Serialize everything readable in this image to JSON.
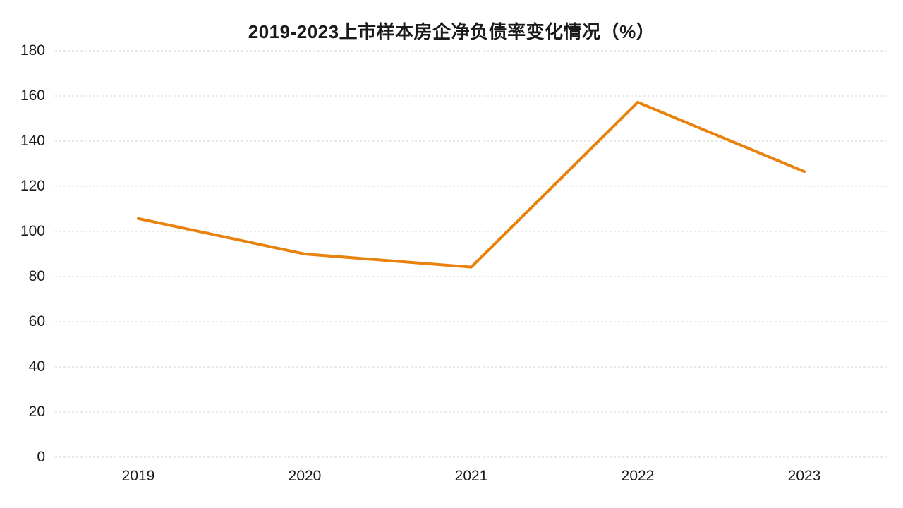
{
  "chart_data": {
    "type": "line",
    "title": "2019-2023上市样本房企净负债率变化情况（%）",
    "categories": [
      "2019",
      "2020",
      "2021",
      "2022",
      "2023"
    ],
    "values": [
      105.7,
      90.0,
      84.2,
      157.2,
      126.5
    ],
    "xlabel": "",
    "ylabel": "",
    "ylim": [
      0,
      180
    ],
    "ytick_step": 20,
    "yticks": [
      "0",
      "20",
      "40",
      "60",
      "80",
      "100",
      "120",
      "140",
      "160",
      "180"
    ],
    "grid": true,
    "gridline_style": "dashed",
    "legend_position": "none",
    "line_color": "#E8820D",
    "gridline_color": "#D6D6D6",
    "text_color": "#1A1A1A",
    "background_color": "#FFFFFF"
  }
}
